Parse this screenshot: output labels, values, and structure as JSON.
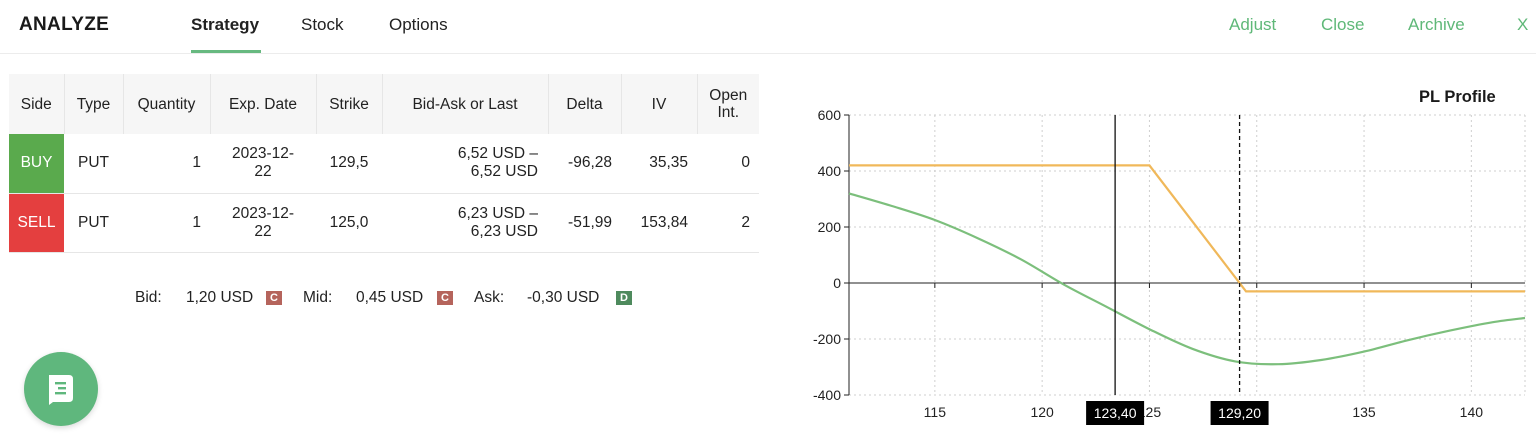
{
  "header": {
    "brand": "ANALYZE",
    "tabs": [
      {
        "label": "Strategy",
        "active": true
      },
      {
        "label": "Stock",
        "active": false
      },
      {
        "label": "Options",
        "active": false
      }
    ],
    "actions": [
      "Adjust",
      "Close",
      "Archive",
      "X"
    ],
    "accent_color": "#5fb878"
  },
  "table": {
    "columns": [
      "Side",
      "Type",
      "Quantity",
      "Exp. Date",
      "Strike",
      "Bid-Ask or Last",
      "Delta",
      "IV",
      "Open Int."
    ],
    "rows": [
      {
        "side": "BUY",
        "side_color": "#5aaa4d",
        "type": "PUT",
        "quantity": "1",
        "exp_date": "2023-12-22",
        "strike": "129,5",
        "bid_ask": "6,52 USD – 6,52 USD",
        "delta": "-96,28",
        "iv": "35,35",
        "open_int": "0"
      },
      {
        "side": "SELL",
        "side_color": "#e43f3f",
        "type": "PUT",
        "quantity": "1",
        "exp_date": "2023-12-22",
        "strike": "125,0",
        "bid_ask": "6,23 USD – 6,23 USD",
        "delta": "-51,99",
        "iv": "153,84",
        "open_int": "2"
      }
    ]
  },
  "summary": {
    "bid_label": "Bid:",
    "bid_value": "1,20 USD",
    "bid_tag": "C",
    "mid_label": "Mid:",
    "mid_value": "0,45 USD",
    "mid_tag": "C",
    "ask_label": "Ask:",
    "ask_value": "-0,30 USD",
    "ask_tag": "D",
    "credit_color": "#b5645c",
    "debit_color": "#4e8a5d"
  },
  "chat_button": {
    "icon": "chat-icon"
  },
  "chart_data": {
    "type": "line",
    "title": "PL Profile",
    "xlim": [
      111,
      142.5
    ],
    "ylim": [
      -400,
      600
    ],
    "x_ticks": [
      115,
      120,
      125,
      130,
      135,
      140
    ],
    "y_ticks": [
      600,
      400,
      200,
      0,
      -200,
      -400
    ],
    "grid": true,
    "series": [
      {
        "color": "#f0b85a",
        "x": [
          111,
          125,
          129.5,
          142.5
        ],
        "y": [
          420,
          420,
          -30,
          -30
        ]
      },
      {
        "color": "#7cbf7c",
        "x": [
          111,
          113,
          115,
          117,
          119,
          121,
          123,
          125,
          127,
          129,
          131,
          133,
          135,
          137,
          139,
          141,
          142.5
        ],
        "y": [
          320,
          275,
          225,
          160,
          85,
          -5,
          -85,
          -165,
          -235,
          -280,
          -290,
          -275,
          -245,
          -205,
          -170,
          -140,
          -125
        ]
      }
    ],
    "crosshairs": [
      {
        "x": 123.4,
        "label": "123,40",
        "style": "solid"
      },
      {
        "x": 129.2,
        "label": "129,20",
        "style": "dashed"
      }
    ]
  }
}
